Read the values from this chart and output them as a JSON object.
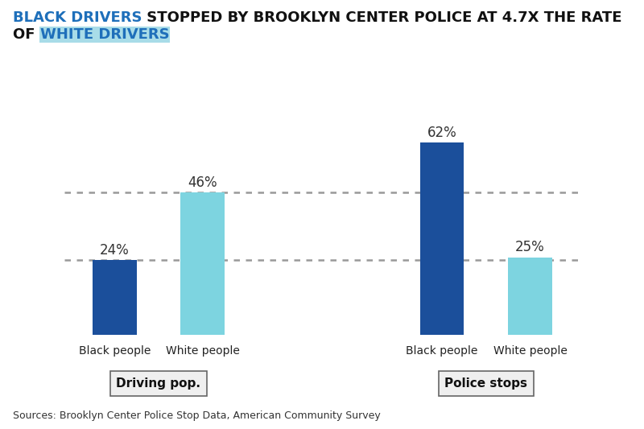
{
  "groups": [
    {
      "label": "Driving pop.",
      "bars": [
        {
          "sublabel": "Black people",
          "value": 24,
          "color": "#1b4f9b"
        },
        {
          "sublabel": "White people",
          "value": 46,
          "color": "#7dd4e0"
        }
      ]
    },
    {
      "label": "Police stops",
      "bars": [
        {
          "sublabel": "Black people",
          "value": 62,
          "color": "#1b4f9b"
        },
        {
          "sublabel": "White people",
          "value": 25,
          "color": "#7dd4e0"
        }
      ]
    }
  ],
  "hlines": [
    24,
    46
  ],
  "source_text": "Sources: Brooklyn Center Police Stop Data, American Community Survey",
  "background_color": "#ffffff",
  "bar_width": 0.35,
  "ylim": [
    0,
    72
  ],
  "value_fontsize": 12,
  "label_fontsize": 10,
  "group_label_fontsize": 11,
  "source_fontsize": 9,
  "title_fontsize": 13,
  "dotted_line_color": "#999999",
  "highlight_color": "#a8dce8",
  "title_black_color": "#111111",
  "title_blue_color": "#1e6fba"
}
